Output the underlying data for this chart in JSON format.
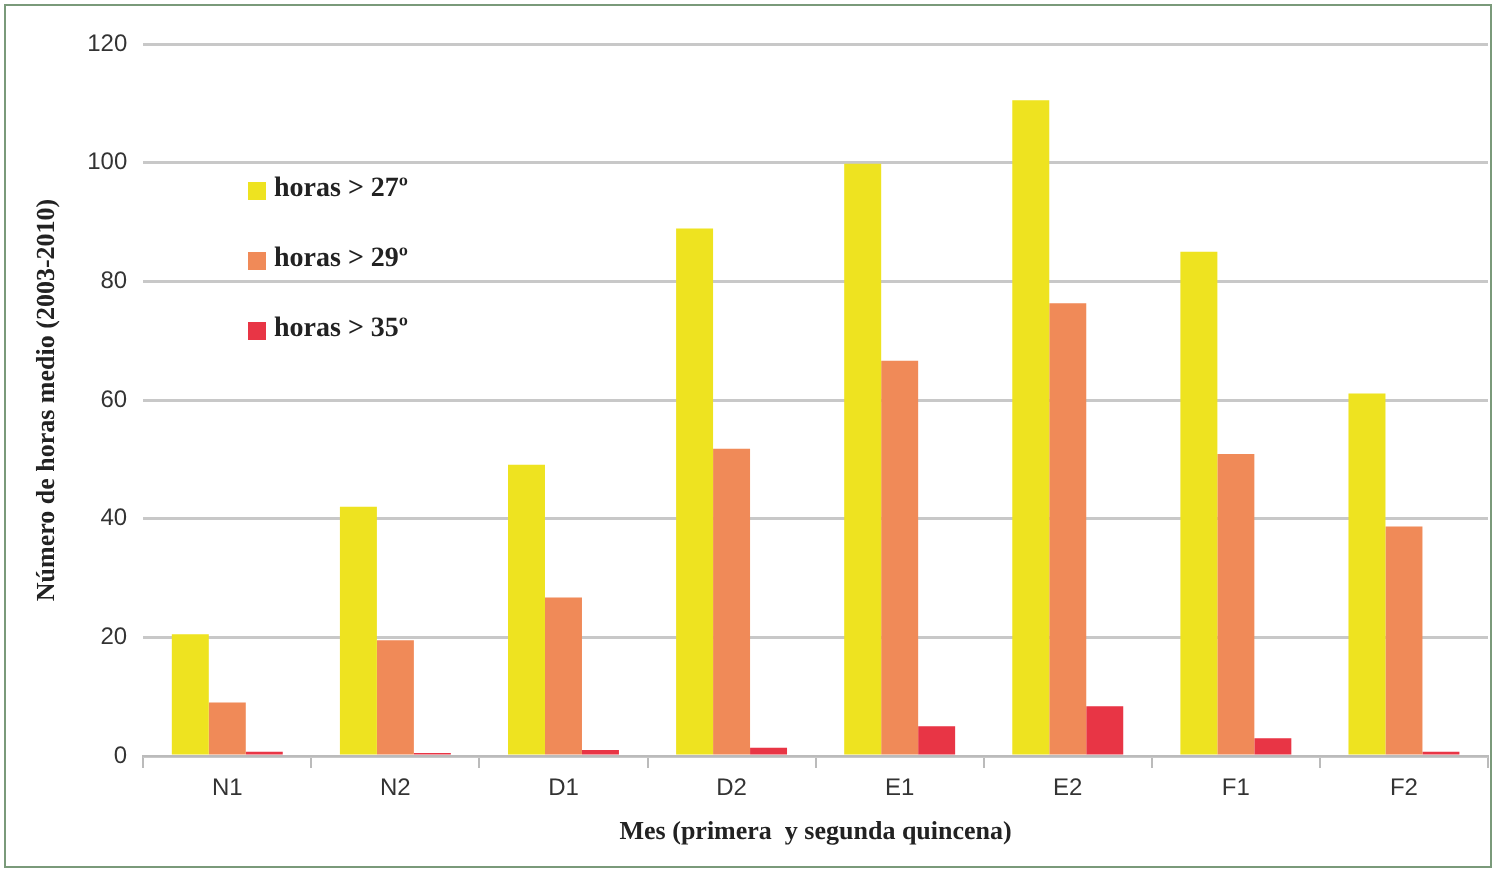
{
  "chart_data": {
    "type": "bar",
    "xlabel": "Mes (primera  y segunda quincena)",
    "ylabel": "Número de horas medio (2003-2010)",
    "categories": [
      "N1",
      "N2",
      "D1",
      "D2",
      "E1",
      "E2",
      "F1",
      "F2"
    ],
    "series": [
      {
        "name": "horas > 27º",
        "color": "#eee320",
        "values": [
          20.5,
          42,
          49.1,
          88.9,
          99.8,
          110.5,
          85,
          61.1
        ]
      },
      {
        "name": "horas > 29º",
        "color": "#f08a58",
        "values": [
          9,
          19.5,
          26.7,
          51.8,
          66.6,
          76.3,
          50.9,
          38.7
        ]
      },
      {
        "name": "horas > 35º",
        "color": "#e83545",
        "values": [
          0.7,
          0.5,
          1,
          1.4,
          5,
          8.4,
          3,
          0.7
        ]
      }
    ],
    "ylim": [
      0,
      120
    ],
    "yticks": [
      0,
      20,
      40,
      60,
      80,
      100,
      120
    ],
    "grid": "y",
    "legend": "top left"
  }
}
